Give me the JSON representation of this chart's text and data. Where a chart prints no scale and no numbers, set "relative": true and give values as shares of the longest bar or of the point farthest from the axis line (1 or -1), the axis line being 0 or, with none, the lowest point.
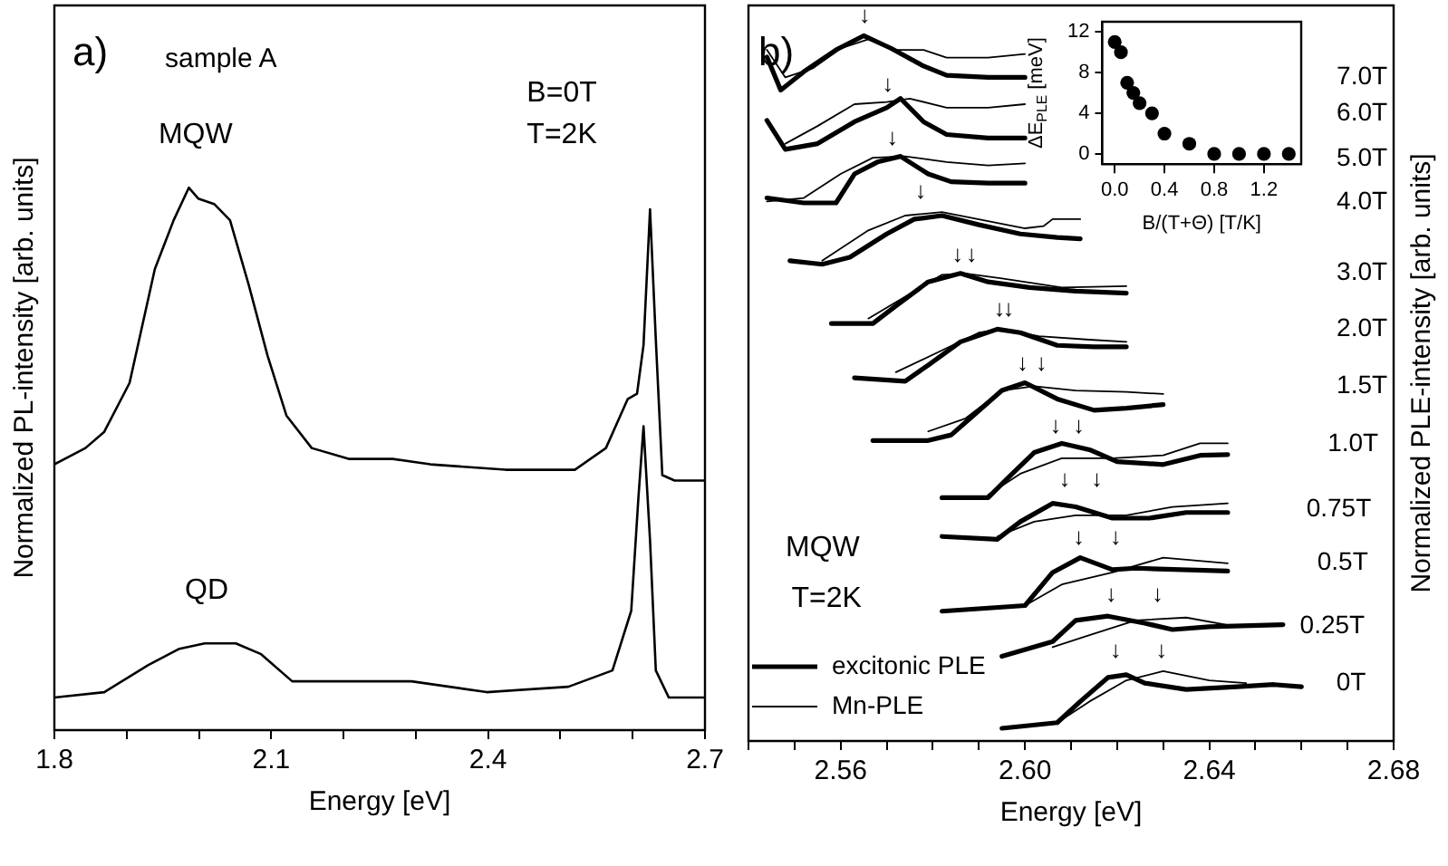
{
  "chart_data": [
    {
      "type": "line",
      "relative": true,
      "xlabel": "Energy [eV]",
      "ylabel": "Normalized PL-intensity [arb. units]",
      "xlim": [
        1.8,
        2.7
      ],
      "xticks": [
        1.8,
        {
          "value": 1.9,
          "label": null
        },
        {
          "value": 2.0,
          "label": null
        },
        2.1,
        {
          "value": 2.2,
          "label": null
        },
        {
          "value": 2.3,
          "label": null
        },
        2.4,
        {
          "value": 2.5,
          "label": null
        },
        {
          "value": 2.6,
          "label": null
        },
        2.7
      ],
      "marker": "none",
      "annotations": [
        "a)",
        "sample A",
        "MQW",
        "B=0T",
        "T=2K",
        "QD"
      ],
      "series": [
        {
          "color": "#000000",
          "x": [
            1.8,
            1.843,
            1.869,
            1.904,
            1.939,
            1.965,
            1.986,
            1.999,
            2.021,
            2.043,
            2.069,
            2.095,
            2.121,
            2.156,
            2.207,
            2.268,
            2.32,
            2.424,
            2.52,
            2.563,
            2.593,
            2.606,
            2.615,
            2.624,
            2.632,
            2.641,
            2.658,
            2.7
          ],
          "values": [
            0.49,
            0.52,
            0.55,
            0.64,
            0.85,
            0.94,
            1,
            0.98,
            0.97,
            0.94,
            0.82,
            0.69,
            0.58,
            0.52,
            0.5,
            0.5,
            0.49,
            0.48,
            0.48,
            0.52,
            0.61,
            0.62,
            0.71,
            0.96,
            0.72,
            0.47,
            0.46,
            0.46
          ]
        },
        {
          "color": "#000000",
          "x": [
            1.8,
            1.869,
            1.93,
            1.973,
            2.008,
            2.051,
            2.086,
            2.129,
            2.207,
            2.294,
            2.398,
            2.511,
            2.572,
            2.598,
            2.608,
            2.615,
            2.624,
            2.632,
            2.65,
            2.7
          ],
          "values": [
            0.06,
            0.07,
            0.12,
            0.15,
            0.16,
            0.16,
            0.14,
            0.09,
            0.09,
            0.09,
            0.07,
            0.08,
            0.11,
            0.22,
            0.43,
            0.56,
            0.35,
            0.11,
            0.06,
            0.06
          ]
        }
      ]
    },
    {
      "type": "line",
      "relative": true,
      "xlabel": "Energy [eV]",
      "ylabel": "Normalized PLE-intensity [arb. units]",
      "xlim": [
        2.54,
        2.68
      ],
      "xticks": [
        {
          "value": 2.54,
          "label": null
        },
        {
          "value": 2.55,
          "label": null
        },
        2.56,
        {
          "value": 2.57,
          "label": null
        },
        {
          "value": 2.58,
          "label": null
        },
        {
          "value": 2.59,
          "label": null
        },
        {
          "value": 2.6,
          "label": "2.60"
        },
        {
          "value": 2.61,
          "label": null
        },
        {
          "value": 2.62,
          "label": null
        },
        {
          "value": 2.63,
          "label": null
        },
        2.64,
        {
          "value": 2.65,
          "label": null
        },
        {
          "value": 2.66,
          "label": null
        },
        {
          "value": 2.67,
          "label": null
        },
        2.68
      ],
      "marker": "none",
      "legend": "bottom left",
      "annotations": [
        "b)",
        "MQW",
        "T=2K",
        "7.0T",
        "6.0T",
        "5.0T",
        "4.0T",
        "3.0T",
        "2.0T",
        "1.5T",
        "1.0T",
        "0.75T",
        "0.5T",
        "0.25T",
        "0T",
        "↓",
        "↓",
        "↓",
        "↓",
        "↓",
        "↓",
        "↓",
        "↓",
        "↓",
        "↓",
        "↓",
        "↓",
        "↓",
        "↓",
        "↓",
        "↓",
        "↓",
        "↓",
        "↓",
        "↓"
      ],
      "series": [
        {
          "name": "excitonic PLE",
          "color": "#000000",
          "x": [
            2.544,
            2.547,
            2.552,
            2.559,
            2.565,
            2.571,
            2.578,
            2.583,
            2.592,
            2.6
          ],
          "values": [
            0.97,
            0.923,
            0.949,
            0.98,
            1,
            0.982,
            0.957,
            0.944,
            0.941,
            0.941
          ]
        },
        {
          "name": "Mn-PLE",
          "color": "#000000",
          "x": [
            2.544,
            2.548,
            2.554,
            2.56,
            2.566,
            2.572,
            2.578,
            2.583,
            2.592,
            2.6
          ],
          "values": [
            0.98,
            0.941,
            0.954,
            0.982,
            0.995,
            0.98,
            0.98,
            0.969,
            0.969,
            0.974
          ]
        },
        {
          "color": "#000000",
          "x": [
            2.544,
            2.548,
            2.555,
            2.563,
            2.57,
            2.573,
            2.578,
            2.583,
            2.592,
            2.6
          ],
          "values": [
            0.88,
            0.839,
            0.847,
            0.878,
            0.898,
            0.911,
            0.878,
            0.86,
            0.855,
            0.855
          ]
        },
        {
          "color": "#000000",
          "x": [
            2.548,
            2.555,
            2.563,
            2.57,
            2.575,
            2.583,
            2.592,
            2.6
          ],
          "values": [
            0.847,
            0.872,
            0.903,
            0.906,
            0.911,
            0.898,
            0.898,
            0.903
          ]
        },
        {
          "color": "#000000",
          "x": [
            2.544,
            2.552,
            2.559,
            2.563,
            2.568,
            2.573,
            2.579,
            2.584,
            2.592,
            2.6
          ],
          "values": [
            0.77,
            0.763,
            0.763,
            0.804,
            0.821,
            0.829,
            0.804,
            0.793,
            0.791,
            0.791
          ]
        },
        {
          "color": "#000000",
          "x": [
            2.544,
            2.552,
            2.56,
            2.567,
            2.574,
            2.583,
            2.592,
            2.6
          ],
          "values": [
            0.765,
            0.77,
            0.804,
            0.827,
            0.829,
            0.821,
            0.816,
            0.819
          ]
        },
        {
          "color": "#000000",
          "x": [
            2.549,
            2.556,
            2.562,
            2.57,
            2.576,
            2.582,
            2.59,
            2.599,
            2.607,
            2.612
          ],
          "values": [
            0.681,
            0.676,
            0.686,
            0.719,
            0.74,
            0.745,
            0.732,
            0.719,
            0.714,
            0.712
          ]
        },
        {
          "color": "#000000",
          "x": [
            2.556,
            2.566,
            2.574,
            2.582,
            2.592,
            2.6,
            2.604,
            2.606,
            2.612
          ],
          "values": [
            0.681,
            0.724,
            0.745,
            0.75,
            0.737,
            0.727,
            0.73,
            0.74,
            0.74
          ]
        },
        {
          "color": "#000000",
          "x": [
            2.558,
            2.567,
            2.572,
            2.579,
            2.586,
            2.592,
            2.601,
            2.611,
            2.622
          ],
          "values": [
            0.592,
            0.592,
            0.617,
            0.651,
            0.663,
            0.651,
            0.643,
            0.638,
            0.635
          ]
        },
        {
          "color": "#000000",
          "x": [
            2.566,
            2.574,
            2.582,
            2.587,
            2.595,
            2.608,
            2.622
          ],
          "values": [
            0.599,
            0.63,
            0.661,
            0.663,
            0.656,
            0.643,
            0.645
          ]
        },
        {
          "color": "#000000",
          "x": [
            2.563,
            2.574,
            2.579,
            2.586,
            2.594,
            2.599,
            2.607,
            2.615,
            2.622
          ],
          "values": [
            0.515,
            0.51,
            0.533,
            0.566,
            0.584,
            0.579,
            0.561,
            0.559,
            0.559
          ]
        },
        {
          "color": "#000000",
          "x": [
            2.572,
            2.582,
            2.59,
            2.595,
            2.603,
            2.614,
            2.622
          ],
          "values": [
            0.523,
            0.554,
            0.579,
            0.584,
            0.574,
            0.569,
            0.566
          ]
        },
        {
          "color": "#000000",
          "x": [
            2.567,
            2.579,
            2.584,
            2.588,
            2.595,
            2.6,
            2.607,
            2.615,
            2.622,
            2.63
          ],
          "values": [
            0.426,
            0.426,
            0.434,
            0.457,
            0.497,
            0.508,
            0.485,
            0.469,
            0.472,
            0.477
          ]
        },
        {
          "color": "#000000",
          "x": [
            2.579,
            2.587,
            2.595,
            2.602,
            2.611,
            2.622,
            2.63
          ],
          "values": [
            0.439,
            0.457,
            0.497,
            0.503,
            0.497,
            0.495,
            0.492
          ]
        },
        {
          "color": "#000000",
          "x": [
            2.582,
            2.592,
            2.596,
            2.602,
            2.608,
            2.614,
            2.62,
            2.63,
            2.638,
            2.644
          ],
          "values": [
            0.345,
            0.345,
            0.371,
            0.409,
            0.422,
            0.413,
            0.396,
            0.392,
            0.405,
            0.406
          ]
        },
        {
          "color": "#000000",
          "x": [
            2.592,
            2.599,
            2.608,
            2.619,
            2.63,
            2.638,
            2.644
          ],
          "values": [
            0.349,
            0.379,
            0.401,
            0.401,
            0.405,
            0.422,
            0.422
          ]
        },
        {
          "color": "#000000",
          "x": [
            2.582,
            2.594,
            2.599,
            2.606,
            2.611,
            2.619,
            2.627,
            2.635,
            2.644
          ],
          "values": [
            0.29,
            0.286,
            0.311,
            0.337,
            0.332,
            0.316,
            0.316,
            0.324,
            0.324
          ]
        },
        {
          "color": "#000000",
          "x": [
            2.594,
            2.602,
            2.611,
            2.622,
            2.632,
            2.644
          ],
          "values": [
            0.29,
            0.311,
            0.32,
            0.32,
            0.332,
            0.337
          ]
        },
        {
          "color": "#000000",
          "x": [
            2.582,
            2.6,
            2.606,
            2.612,
            2.619,
            2.624,
            2.644
          ],
          "values": [
            0.184,
            0.192,
            0.239,
            0.26,
            0.243,
            0.245,
            0.241
          ]
        },
        {
          "color": "#000000",
          "x": [
            2.6,
            2.608,
            2.619,
            2.63,
            2.644
          ],
          "values": [
            0.192,
            0.222,
            0.239,
            0.26,
            0.252
          ]
        },
        {
          "color": "#000000",
          "x": [
            2.595,
            2.606,
            2.611,
            2.618,
            2.626,
            2.632,
            2.64,
            2.656
          ],
          "values": [
            0.12,
            0.141,
            0.171,
            0.177,
            0.167,
            0.158,
            0.162,
            0.165
          ]
        },
        {
          "color": "#000000",
          "x": [
            2.606,
            2.614,
            2.624,
            2.635,
            2.646
          ],
          "values": [
            0.133,
            0.15,
            0.171,
            0.175,
            0.162
          ]
        },
        {
          "color": "#000000",
          "x": [
            2.595,
            2.607,
            2.612,
            2.618,
            2.622,
            2.626,
            2.635,
            2.646,
            2.654,
            2.66
          ],
          "values": [
            0.018,
            0.026,
            0.056,
            0.09,
            0.094,
            0.082,
            0.073,
            0.077,
            0.08,
            0.077
          ]
        },
        {
          "color": "#000000",
          "x": [
            2.607,
            2.614,
            2.622,
            2.63,
            2.64,
            2.648
          ],
          "values": [
            0.026,
            0.056,
            0.086,
            0.099,
            0.086,
            0.082
          ]
        }
      ]
    },
    {
      "type": "scatter",
      "xlabel": "B/(T+Θ) [T/K]",
      "ylabel": "ΔE$_{PLE}$ [meV]",
      "xlim": [
        -0.1,
        1.5
      ],
      "ylim": [
        -1,
        13
      ],
      "xticks": [
        {
          "value": 0,
          "label": "0.0"
        },
        0.4,
        0.8,
        1.2
      ],
      "yticks": [
        0,
        4,
        8,
        12
      ],
      "marker": "circle",
      "x": [
        0,
        0.05,
        0.1,
        0.15,
        0.2,
        0.3,
        0.4,
        0.6,
        0.8,
        1.0,
        1.2,
        1.4
      ],
      "values": [
        11,
        10,
        7,
        6,
        5,
        4,
        2,
        1,
        0,
        0,
        0,
        0
      ],
      "color": "#000000"
    }
  ]
}
